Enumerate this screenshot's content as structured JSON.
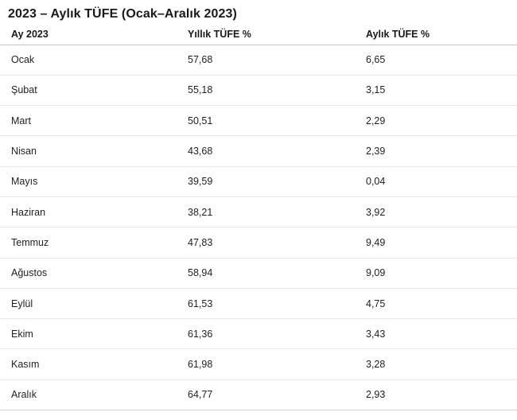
{
  "page": {
    "title": "2023 – Aylık TÜFE (Ocak–Aralık 2023)"
  },
  "table": {
    "columns": [
      "Ay 2023",
      "Yıllık TÜFE %",
      "Aylık TÜFE %"
    ],
    "rows": [
      {
        "month": "Ocak",
        "annual": "57,68",
        "monthly": "6,65"
      },
      {
        "month": "Şubat",
        "annual": "55,18",
        "monthly": "3,15"
      },
      {
        "month": "Mart",
        "annual": "50,51",
        "monthly": "2,29"
      },
      {
        "month": "Nisan",
        "annual": "43,68",
        "monthly": "2,39"
      },
      {
        "month": "Mayıs",
        "annual": "39,59",
        "monthly": "0,04"
      },
      {
        "month": "Haziran",
        "annual": "38,21",
        "monthly": "3,92"
      },
      {
        "month": "Temmuz",
        "annual": "47,83",
        "monthly": "9,49"
      },
      {
        "month": "Ağustos",
        "annual": "58,94",
        "monthly": "9,09"
      },
      {
        "month": "Eylül",
        "annual": "61,53",
        "monthly": "4,75"
      },
      {
        "month": "Ekim",
        "annual": "61,36",
        "monthly": "3,43"
      },
      {
        "month": "Kasım",
        "annual": "61,98",
        "monthly": "3,28"
      },
      {
        "month": "Aralık",
        "annual": "64,77",
        "monthly": "2,93"
      }
    ]
  },
  "chart_data": {
    "type": "table",
    "title": "2023 – Aylık TÜFE (Ocak–Aralık 2023)",
    "columns": [
      "Ay 2023",
      "Yıllık TÜFE %",
      "Aylık TÜFE %"
    ],
    "categories": [
      "Ocak",
      "Şubat",
      "Mart",
      "Nisan",
      "Mayıs",
      "Haziran",
      "Temmuz",
      "Ağustos",
      "Eylül",
      "Ekim",
      "Kasım",
      "Aralık"
    ],
    "series": [
      {
        "name": "Yıllık TÜFE %",
        "values": [
          57.68,
          55.18,
          50.51,
          43.68,
          39.59,
          38.21,
          47.83,
          58.94,
          61.53,
          61.36,
          61.98,
          64.77
        ]
      },
      {
        "name": "Aylık TÜFE %",
        "values": [
          6.65,
          3.15,
          2.29,
          2.39,
          0.04,
          3.92,
          9.49,
          9.09,
          4.75,
          3.43,
          3.28,
          2.93
        ]
      }
    ],
    "layout": {
      "grid": "horizontal-row-separators",
      "legend": "none"
    }
  },
  "colors": {
    "background": "#ffffff",
    "text": "#1b1b1b",
    "header_border": "#c4c4c4",
    "row_border": "#e9e9e9"
  }
}
